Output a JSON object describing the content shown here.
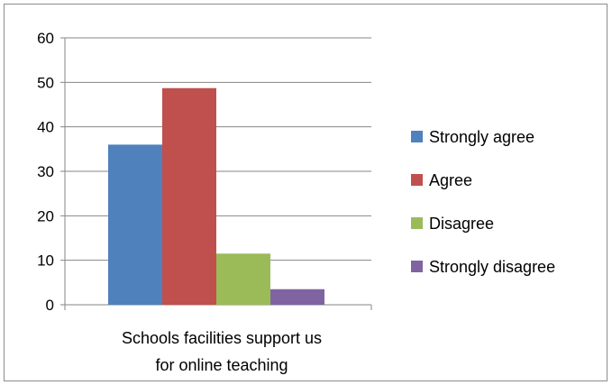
{
  "chart_data": {
    "type": "bar",
    "categories": [
      "Schools facilities support us for online teaching"
    ],
    "category_label_lines": [
      "Schools facilities support us",
      "for online teaching"
    ],
    "series": [
      {
        "name": "Strongly agree",
        "values": [
          36
        ],
        "color": "#4f81bd"
      },
      {
        "name": "Agree",
        "values": [
          48.7
        ],
        "color": "#c0504d"
      },
      {
        "name": "Disagree",
        "values": [
          11.5
        ],
        "color": "#9bbb59"
      },
      {
        "name": "Strongly disagree",
        "values": [
          3.5
        ],
        "color": "#8064a2"
      }
    ],
    "title": "",
    "xlabel": "",
    "ylabel": "",
    "ylim": [
      0,
      60
    ],
    "yticks": [
      "0",
      "10",
      "20",
      "30",
      "40",
      "50",
      "60"
    ],
    "grid": true,
    "legend": "right"
  }
}
